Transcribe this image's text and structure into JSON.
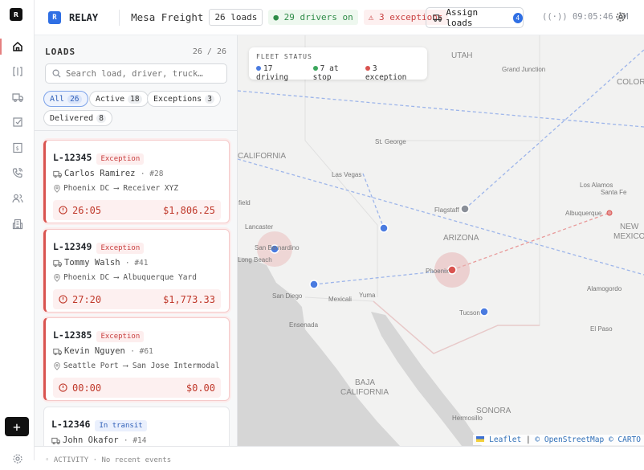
{
  "app": {
    "logo_letter": "R",
    "name": "RELAY",
    "brand_icon_letter": "R"
  },
  "header": {
    "company": "Mesa Freight",
    "loads_pill": "26 loads",
    "drivers_pill": "29 drivers on",
    "exceptions_pill": "3 exceptions",
    "assign_label": "Assign loads",
    "assign_count": "4",
    "clock": "09:05:46 AM"
  },
  "sidebar": {
    "items": [
      "home",
      "board",
      "truck",
      "tasks",
      "billing",
      "calls",
      "drivers",
      "facilities"
    ],
    "add_label": "+"
  },
  "loads": {
    "title": "LOADS",
    "count": "26 / 26",
    "search_placeholder": "Search load, driver, truck…",
    "filters": [
      {
        "label": "All",
        "count": "26",
        "selected": true
      },
      {
        "label": "Active",
        "count": "18"
      },
      {
        "label": "Exceptions",
        "count": "3"
      },
      {
        "label": "Delivered",
        "count": "8"
      }
    ],
    "cards": [
      {
        "id": "L-12345",
        "status": "Exception",
        "driver": "Carlos Ramirez",
        "truck": "· #28",
        "origin": "Phoenix DC",
        "dest": "Receiver XYZ",
        "timer": "26:05",
        "amount": "$1,806.25"
      },
      {
        "id": "L-12349",
        "status": "Exception",
        "driver": "Tommy Walsh",
        "truck": "· #41",
        "origin": "Phoenix DC",
        "dest": "Albuquerque Yard",
        "timer": "27:20",
        "amount": "$1,773.33"
      },
      {
        "id": "L-12385",
        "status": "Exception",
        "driver": "Kevin Nguyen",
        "truck": "· #61",
        "origin": "Seattle Port",
        "dest": "San Jose Intermodal",
        "timer": "00:00",
        "amount": "$0.00"
      },
      {
        "id": "L-12346",
        "status": "In transit",
        "driver": "John Okafor",
        "truck": "· #14"
      }
    ]
  },
  "fleet": {
    "title": "FLEET STATUS",
    "driving": "17 driving",
    "at_stop": "7 at stop",
    "exception": "3 exception"
  },
  "colors": {
    "accent": "#2f6fe4",
    "driving": "#4a7be0",
    "stop": "#3aa65c",
    "exception": "#d9534f"
  },
  "map": {
    "labels": [
      "UTAH",
      "Grand Junction",
      "COLOR",
      "CALIFORNIA",
      "St. George",
      "Las Vegas",
      "Lancaster",
      "San Bernardino",
      "Long Beach",
      "Flagstaff",
      "ARIZONA",
      "Phoenix",
      "San Diego",
      "Mexicali",
      "Yuma",
      "Tucson",
      "Ensenada",
      "BAJA",
      "CALIFORNIA",
      "Los Alamos",
      "Santa Fe",
      "Albuquerque",
      "NEW",
      "MEXICO",
      "Alamogordo",
      "El Paso",
      "SONORA",
      "Hermosillo",
      "field"
    ],
    "attribution": {
      "leaflet": "Leaflet",
      "sep": "|",
      "osm": "© OpenStreetMap",
      "carto": "© CARTO"
    }
  },
  "activity": "◦ ACTIVITY · No recent events"
}
